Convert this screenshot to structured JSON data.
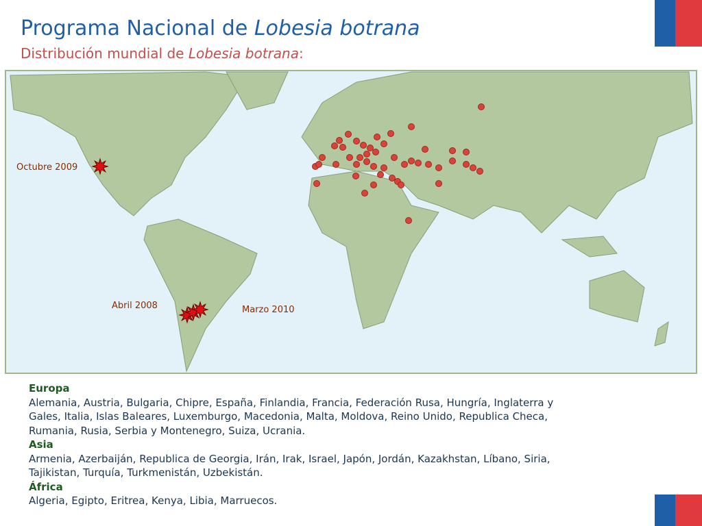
{
  "header": {
    "title": {
      "text": "Programa Nacional de",
      "italic": "Lobesia botrana"
    },
    "subtitle": {
      "text": "Distribución mundial de",
      "italic": "Lobesia botrana",
      "end": ":"
    }
  },
  "map": {
    "labels": [
      "Octubre 2009",
      "Abril 2008",
      "Marzo 2010"
    ]
  },
  "regions": [
    {
      "name": "Europa",
      "lines": [
        "Alemania, Austria, Bulgaria, Chipre, España, Finlandia, Francia, Federación Rusa, Hungría, Inglaterra y",
        "Gales, Italia, Islas Baleares, Luxemburgo, Macedonia, Malta, Moldova, Reino Unido, Republica Checa,",
        "Rumania, Rusia, Serbia y Montenegro, Suiza, Ucrania."
      ]
    },
    {
      "name": "Asia",
      "lines": [
        "Armenia, Azerbaiján, Republica de Georgia, Irán, Irak, Israel, Japón, Jordán, Kazakhstan, Líbano, Siria,",
        "Tajikistan, Turquía, Turkmenistán, Uzbekistán."
      ]
    },
    {
      "name": "África",
      "lines": [
        "Algeria, Egipto, Eritrea, Kenya, Libia, Marruecos."
      ]
    }
  ]
}
